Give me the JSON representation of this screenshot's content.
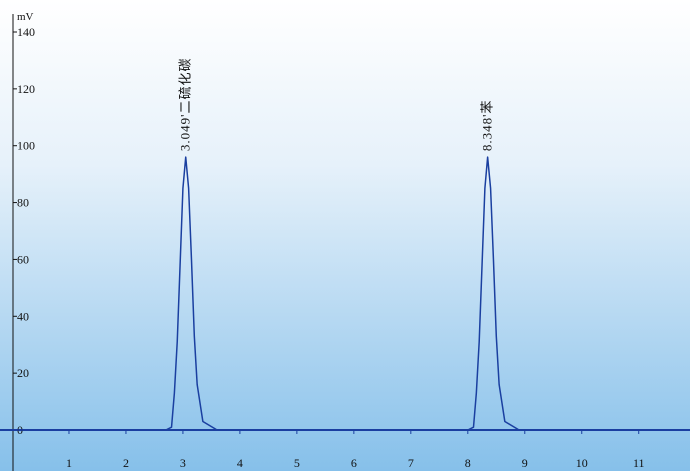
{
  "chart_data": {
    "type": "line",
    "y_label": "mV",
    "x": [
      0,
      2.7,
      2.8,
      2.85,
      2.9,
      2.95,
      3.0,
      3.049,
      3.1,
      3.15,
      3.2,
      3.25,
      3.35,
      3.6,
      8.0,
      8.1,
      8.15,
      8.2,
      8.25,
      8.3,
      8.348,
      8.4,
      8.45,
      8.5,
      8.55,
      8.65,
      8.9,
      11.9
    ],
    "series": [
      {
        "color": "#1a3fa0",
        "values": [
          0,
          0,
          1,
          13,
          31,
          58,
          85,
          96,
          85,
          60,
          33,
          16,
          3,
          0,
          0,
          1,
          13,
          31,
          58,
          85,
          96,
          85,
          60,
          33,
          16,
          3,
          0,
          0
        ]
      }
    ],
    "xlim": [
      0,
      11.9
    ],
    "ylim": [
      0,
      140
    ],
    "xticks": [
      1,
      2,
      3,
      4,
      5,
      6,
      7,
      8,
      9,
      10,
      11
    ],
    "yticks": [
      0,
      20,
      40,
      60,
      80,
      100,
      120,
      140
    ],
    "annotations": [
      {
        "text": "3.049'二硫化碳",
        "x": 3.049,
        "y": 96
      },
      {
        "text": "8.348'苯",
        "x": 8.348,
        "y": 96
      }
    ]
  }
}
